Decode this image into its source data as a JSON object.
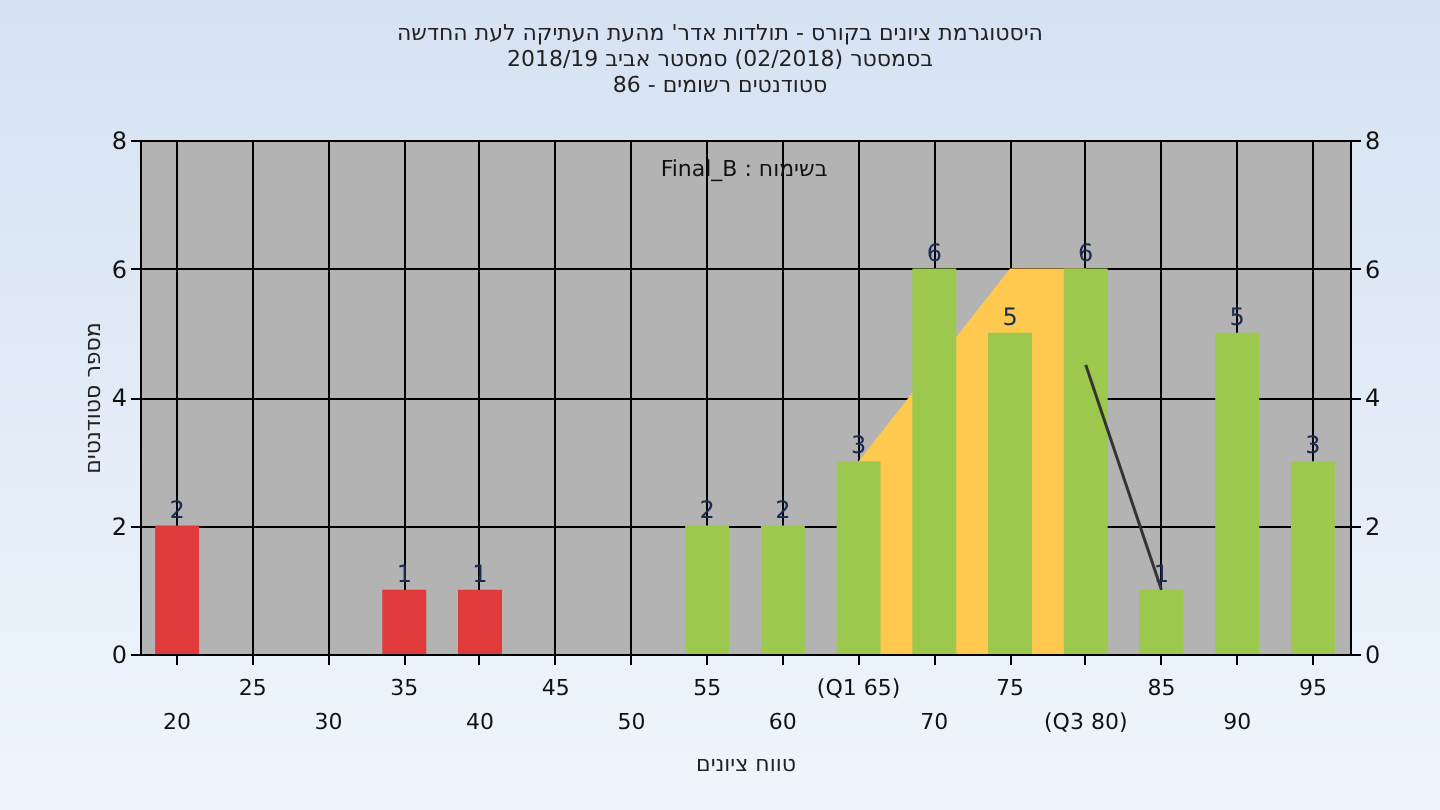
{
  "chart_data": {
    "type": "bar",
    "title": "היסטוגרמת ציונים בקורס - תולדות אדר' מהעת העתיקה לעת החדשה",
    "subtitle": "בסמסטר  (02/2018)  סמסטר אביב 2018/19\nסטודנטים רשומים - 86",
    "xlabel": "טווח ציונים",
    "ylabel": "מספר סטודנטים",
    "annotations": [
      "Final_B : בשימוח"
    ],
    "categories": [
      "20",
      "25",
      "30",
      "35",
      "40",
      "45",
      "50",
      "55",
      "60",
      "(Q1 65)",
      "70",
      "75",
      "(Q3 80)",
      "85",
      "90",
      "95"
    ],
    "series": [
      {
        "type": "area",
        "color": "#ffc94f",
        "values": [
          null,
          null,
          null,
          null,
          null,
          null,
          null,
          null,
          null,
          3,
          null,
          6,
          6,
          null,
          null,
          null
        ]
      },
      {
        "type": "bar",
        "values": [
          2,
          0,
          0,
          1,
          1,
          0,
          0,
          2,
          2,
          3,
          6,
          5,
          6,
          1,
          5,
          3
        ],
        "colors": [
          "#e03a3a",
          "#e03a3a",
          "#e03a3a",
          "#e03a3a",
          "#e03a3a",
          "#e03a3a",
          "#e03a3a",
          "#9cc84e",
          "#9cc84e",
          "#9cc84e",
          "#9cc84e",
          "#9cc84e",
          "#9cc84e",
          "#9cc84e",
          "#9cc84e",
          "#9cc84e"
        ],
        "value_labels": [
          "2",
          null,
          null,
          "1",
          "1",
          null,
          null,
          "2",
          "2",
          "3",
          "6",
          "5",
          "6",
          "1",
          "5",
          "3"
        ]
      },
      {
        "type": "line",
        "color": "#333333",
        "values": [
          null,
          null,
          null,
          null,
          null,
          null,
          null,
          null,
          null,
          null,
          null,
          null,
          4.5,
          1,
          null,
          null
        ]
      }
    ],
    "ylim": [
      0,
      8
    ],
    "yticks": [
      0,
      2,
      4,
      6,
      8
    ],
    "y2lim": [
      0,
      8
    ],
    "y2ticks": [
      0,
      2,
      4,
      6,
      8
    ],
    "grid": true
  }
}
